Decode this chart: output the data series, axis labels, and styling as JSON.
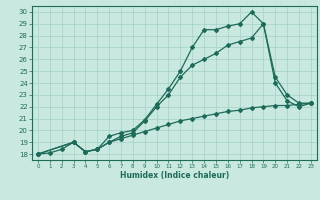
{
  "line1_flat": {
    "x": [
      0,
      1,
      2,
      3,
      4,
      5,
      6,
      7,
      8,
      9,
      10,
      11,
      12,
      13,
      14,
      15,
      16,
      17,
      18,
      19,
      20,
      21,
      22,
      23
    ],
    "y": [
      18,
      18.1,
      18.4,
      19.0,
      18.2,
      18.4,
      19.0,
      19.3,
      19.6,
      19.9,
      20.2,
      20.5,
      20.8,
      21.0,
      21.2,
      21.4,
      21.6,
      21.7,
      21.9,
      22.0,
      22.1,
      22.1,
      22.2,
      22.3
    ]
  },
  "line2_upper": {
    "x": [
      0,
      3,
      4,
      5,
      6,
      7,
      8,
      9,
      10,
      11,
      12,
      13,
      14,
      15,
      16,
      17,
      18,
      19,
      20,
      21,
      22,
      23
    ],
    "y": [
      18,
      19.0,
      18.2,
      18.4,
      19.5,
      19.8,
      20.0,
      20.9,
      22.2,
      23.5,
      25.0,
      27.0,
      28.5,
      28.5,
      28.8,
      29.0,
      30.0,
      29.0,
      24.5,
      23.0,
      22.3,
      22.3
    ]
  },
  "line3_mid": {
    "x": [
      0,
      3,
      4,
      5,
      6,
      7,
      8,
      9,
      10,
      11,
      12,
      13,
      14,
      15,
      16,
      17,
      18,
      19,
      20,
      21,
      22,
      23
    ],
    "y": [
      18,
      19.0,
      18.2,
      18.4,
      19.0,
      19.5,
      19.8,
      20.8,
      22.0,
      23.0,
      24.5,
      25.5,
      26.0,
      26.5,
      27.2,
      27.5,
      27.8,
      29.0,
      24.0,
      22.5,
      22.0,
      22.3
    ]
  },
  "xlabel": "Humidex (Indice chaleur)",
  "xlim": [
    -0.5,
    23.5
  ],
  "ylim": [
    17.5,
    30.5
  ],
  "yticks": [
    18,
    19,
    20,
    21,
    22,
    23,
    24,
    25,
    26,
    27,
    28,
    29,
    30
  ],
  "xticks": [
    0,
    1,
    2,
    3,
    4,
    5,
    6,
    7,
    8,
    9,
    10,
    11,
    12,
    13,
    14,
    15,
    16,
    17,
    18,
    19,
    20,
    21,
    22,
    23
  ],
  "bg_color": "#c8e8e0",
  "grid_color": "#a8d4cc",
  "line_color": "#1e6b5a",
  "tick_color": "#1e6b5a",
  "label_color": "#1e6b5a",
  "marker": "D",
  "markersize": 2.0,
  "linewidth": 0.9
}
